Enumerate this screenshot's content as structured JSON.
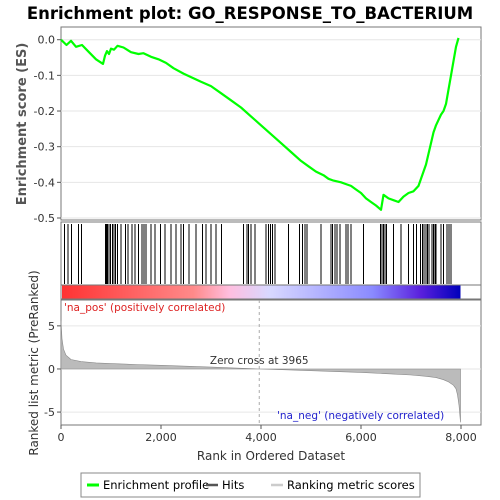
{
  "colors": {
    "enrichment_line": "#00ff00",
    "hit_bar": "#000000",
    "metric_fill": "#bbbbbb",
    "metric_stroke": "#888888",
    "pos_label": "#dd2222",
    "neg_label": "#2222cc",
    "zero_line": "#aaaaaa",
    "gradient": [
      "#ff3333",
      "#ff8a8a",
      "#ffbedf",
      "#d8d8ff",
      "#8a8aff",
      "#5a20dd",
      "#0000bb"
    ]
  },
  "chart_data": {
    "type": "line",
    "title": "Enrichment plot: GO_RESPONSE_TO_BACTERIUM",
    "xlabel": "Rank in Ordered Dataset",
    "xlim": [
      0,
      8400
    ],
    "x_ticks": [
      0,
      2000,
      4000,
      6000,
      8000
    ],
    "x_tick_labels": [
      "0",
      "2,000",
      "4,000",
      "6,000",
      "8,000"
    ],
    "enrichment": {
      "ylabel": "Enrichment score (ES)",
      "ylim": [
        -0.5,
        0.03
      ],
      "y_ticks": [
        0.0,
        -0.1,
        -0.2,
        -0.3,
        -0.4,
        -0.5
      ],
      "y_tick_labels": [
        "0.0",
        "-0.1",
        "-0.2",
        "-0.3",
        "-0.4",
        "-0.5"
      ],
      "x": [
        0,
        110,
        200,
        300,
        420,
        560,
        700,
        840,
        880,
        920,
        960,
        1000,
        1060,
        1130,
        1250,
        1400,
        1550,
        1650,
        1800,
        1950,
        2100,
        2250,
        2450,
        2600,
        2800,
        3000,
        3200,
        3400,
        3600,
        3800,
        4000,
        4200,
        4400,
        4600,
        4800,
        4950,
        5100,
        5250,
        5350,
        5450,
        5600,
        5700,
        5800,
        5900,
        6000,
        6100,
        6200,
        6300,
        6400,
        6450,
        6550,
        6650,
        6750,
        6850,
        6950,
        7050,
        7150,
        7200,
        7250,
        7300,
        7350,
        7400,
        7450,
        7500,
        7550,
        7600,
        7650,
        7700,
        7750,
        7800,
        7850,
        7900,
        7950
      ],
      "y": [
        0.0,
        -0.015,
        -0.003,
        -0.02,
        -0.015,
        -0.035,
        -0.055,
        -0.068,
        -0.045,
        -0.032,
        -0.04,
        -0.025,
        -0.028,
        -0.017,
        -0.022,
        -0.035,
        -0.04,
        -0.038,
        -0.048,
        -0.055,
        -0.065,
        -0.08,
        -0.095,
        -0.105,
        -0.118,
        -0.13,
        -0.15,
        -0.17,
        -0.19,
        -0.215,
        -0.24,
        -0.265,
        -0.29,
        -0.315,
        -0.34,
        -0.355,
        -0.37,
        -0.38,
        -0.39,
        -0.395,
        -0.4,
        -0.405,
        -0.41,
        -0.42,
        -0.43,
        -0.445,
        -0.455,
        -0.465,
        -0.477,
        -0.435,
        -0.445,
        -0.45,
        -0.455,
        -0.44,
        -0.43,
        -0.425,
        -0.41,
        -0.39,
        -0.37,
        -0.35,
        -0.32,
        -0.29,
        -0.26,
        -0.24,
        -0.225,
        -0.21,
        -0.2,
        -0.18,
        -0.14,
        -0.1,
        -0.06,
        -0.02,
        0.005
      ]
    },
    "hits": [
      70,
      140,
      210,
      350,
      410,
      890,
      910,
      930,
      960,
      990,
      1030,
      1060,
      1090,
      1130,
      1200,
      1290,
      1340,
      1420,
      1480,
      1550,
      1620,
      1660,
      1700,
      1800,
      1880,
      1990,
      2080,
      2200,
      2300,
      2400,
      2450,
      2560,
      2700,
      2830,
      2900,
      3000,
      3100,
      3210,
      3650,
      3720,
      3750,
      3800,
      3880,
      4100,
      4150,
      4190,
      4230,
      4280,
      4550,
      4770,
      4830,
      4880,
      4920,
      5200,
      5400,
      5430,
      5480,
      5520,
      5580,
      5700,
      5740,
      5800,
      6050,
      6390,
      6420,
      6450,
      6480,
      6510,
      6650,
      6800,
      6950,
      7050,
      7110,
      7190,
      7230,
      7260,
      7300,
      7330,
      7360,
      7420,
      7450,
      7480,
      7500,
      7600,
      7650,
      7720,
      7760,
      7800
    ],
    "metric": {
      "ylabel": "Ranked list metric (PreRanked)",
      "ylim": [
        -6.5,
        8
      ],
      "y_ticks": [
        5,
        0,
        -5
      ],
      "y_tick_labels": [
        "5",
        "0",
        "-5"
      ],
      "x": [
        0,
        20,
        50,
        100,
        200,
        400,
        700,
        1000,
        1500,
        2000,
        2500,
        3000,
        3500,
        3965,
        4500,
        5000,
        5500,
        6000,
        6500,
        7000,
        7300,
        7500,
        7650,
        7750,
        7850,
        7900,
        7930,
        7960,
        7990
      ],
      "y": [
        5.6,
        3.5,
        2.3,
        1.6,
        1.1,
        0.85,
        0.7,
        0.62,
        0.52,
        0.42,
        0.32,
        0.22,
        0.1,
        0.0,
        -0.1,
        -0.2,
        -0.3,
        -0.4,
        -0.55,
        -0.7,
        -0.85,
        -1.0,
        -1.25,
        -1.5,
        -1.9,
        -2.3,
        -3.0,
        -4.2,
        -6.2
      ]
    },
    "zero_cross": 3965,
    "zero_cross_label": "Zero cross at 3965",
    "pos_label": "'na_pos' (positively correlated)",
    "neg_label": "'na_neg' (negatively correlated)",
    "legend": [
      "Enrichment profile",
      "Hits",
      "Ranking metric scores"
    ],
    "legend_position": "bottom"
  }
}
